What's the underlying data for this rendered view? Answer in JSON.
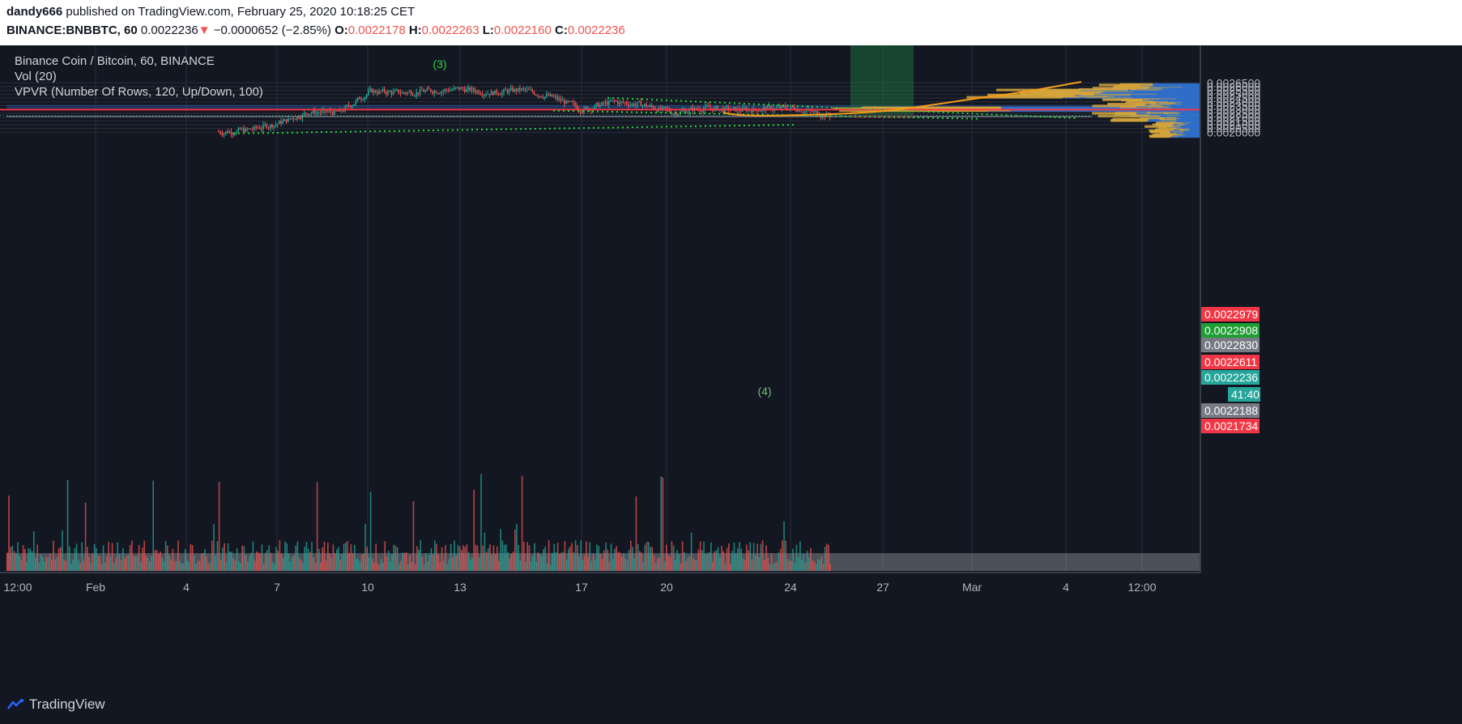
{
  "header": {
    "publisher": "dandy666",
    "published_text": " published on TradingView.com, February 25, 2020 10:18:25 CET",
    "symbol": "BINANCE:BNBBTC, 60",
    "last": "0.0022236",
    "change_arrow": "▼",
    "change": "−0.0000652 (−2.85%)",
    "o_label": "O:",
    "o": "0.0022178",
    "h_label": "H:",
    "h": "0.0022263",
    "l_label": "L:",
    "l": "0.0022160",
    "c_label": "C:",
    "c": "0.0022236"
  },
  "legend": {
    "title": "Binance Coin / Bitcoin, 60, BINANCE",
    "vol": "Vol (20)",
    "vpvr": "VPVR (Number Of Rows, 120, Up/Down, 100)"
  },
  "footer": {
    "brand": "TradingView"
  },
  "colors": {
    "background": "#131722",
    "up": "#26a69a",
    "down": "#ef5350",
    "vp_up": "#2f6ec8",
    "vp_down": "#d4a53c",
    "projection": "#f59d1a",
    "trendline": "#27d33a",
    "resistance": "#f23645"
  },
  "chart_data": {
    "type": "candlestick",
    "x_ticks": [
      "12:00",
      "Feb",
      "4",
      "7",
      "10",
      "13",
      "17",
      "20",
      "24",
      "27",
      "Mar",
      "4",
      "12:00"
    ],
    "y_ticks": [
      "0.0026500",
      "0.0026000",
      "0.0025500",
      "0.0025000",
      "0.0024500",
      "0.0024000",
      "0.0023500",
      "0.0023000",
      "0.0022500",
      "0.0022000",
      "0.0021500",
      "0.0021000",
      "0.0020500",
      "0.0020000"
    ],
    "ylim": [
      0.00194,
      0.00266
    ],
    "price_path": [
      [
        "Feb 5",
        0.002
      ],
      [
        "Feb 6",
        0.00203
      ],
      [
        "Feb 7",
        0.00212
      ],
      [
        "Feb 8",
        0.00227
      ],
      [
        "Feb 9",
        0.00226
      ],
      [
        "Feb 10",
        0.00254
      ],
      [
        "Feb 11",
        0.00252
      ],
      [
        "Feb 13",
        0.00257
      ],
      [
        "Feb 14",
        0.00252
      ],
      [
        "Feb 15",
        0.00256
      ],
      [
        "Feb 16",
        0.00246
      ],
      [
        "Feb 17",
        0.0023
      ],
      [
        "Feb 18",
        0.0024
      ],
      [
        "Feb 19",
        0.00236
      ],
      [
        "Feb 20",
        0.00226
      ],
      [
        "Feb 21",
        0.00232
      ],
      [
        "Feb 22",
        0.00229
      ],
      [
        "Feb 23",
        0.00231
      ],
      [
        "Feb 24",
        0.00232
      ],
      [
        "Feb 25",
        0.002224
      ]
    ],
    "price_labels": [
      {
        "text": "0.0022979",
        "color": "#f23645"
      },
      {
        "text": "0.0022908",
        "color": "#1e9e33"
      },
      {
        "text": "0.0022830",
        "color": "#787b86"
      },
      {
        "text": "0.0022611",
        "color": "#f23645"
      },
      {
        "text": "0.0022236",
        "color": "#26a69a"
      },
      {
        "text": "41:40",
        "color": "#26a69a"
      },
      {
        "text": "0.0022188",
        "color": "#787b86"
      },
      {
        "text": "0.0021734",
        "color": "#f23645"
      }
    ],
    "annotations": [
      {
        "text": "(3)"
      },
      {
        "text": "(4)"
      }
    ],
    "resistance_level": 0.0022979
  }
}
